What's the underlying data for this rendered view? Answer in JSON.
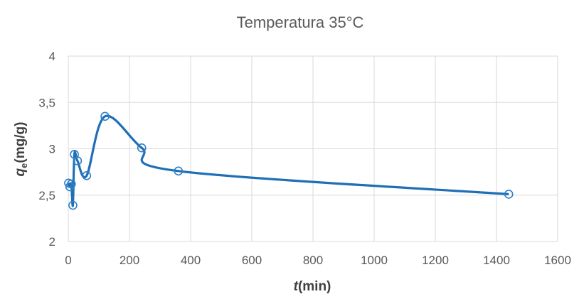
{
  "chart_data": {
    "type": "scatter",
    "title": "Temperatura 35°C",
    "xlabel": {
      "main": "t",
      "suffix": "(min)"
    },
    "ylabel": {
      "main": "q",
      "sub": "e",
      "suffix": "(mg/g)"
    },
    "xlim": [
      0,
      1600
    ],
    "ylim": [
      2,
      4
    ],
    "xticks": [
      0,
      200,
      400,
      600,
      800,
      1000,
      1200,
      1400,
      1600
    ],
    "xtick_labels": [
      "0",
      "200",
      "400",
      "600",
      "800",
      "1000",
      "1200",
      "1400",
      "1600"
    ],
    "yticks": [
      2,
      2.5,
      3,
      3.5,
      4
    ],
    "ytick_labels": [
      "2",
      "2,5",
      "3",
      "3,5",
      "4"
    ],
    "grid": true,
    "smooth_line": true,
    "series": [
      {
        "x": [
          1,
          5,
          10,
          15,
          20,
          30,
          60,
          120,
          240,
          360,
          1440
        ],
        "y": [
          2.63,
          2.59,
          2.62,
          2.39,
          2.94,
          2.87,
          2.71,
          3.35,
          3.01,
          2.76,
          2.51
        ],
        "color": "#1f6fb8"
      }
    ]
  }
}
